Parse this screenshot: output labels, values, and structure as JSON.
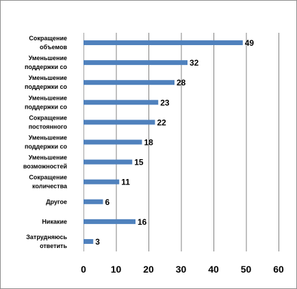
{
  "chart_data": {
    "type": "bar",
    "orientation": "horizontal",
    "title": "",
    "xlabel": "",
    "ylabel": "",
    "xlim": [
      0,
      60
    ],
    "xticks": [
      0,
      10,
      20,
      30,
      40,
      50,
      60
    ],
    "grid": "vertical",
    "legend": "none",
    "bar_color": "#4f81bd",
    "grid_color": "#808080",
    "categories": [
      {
        "lines": [
          "Сокращение",
          "объемов"
        ]
      },
      {
        "lines": [
          "Уменьшение",
          "поддержки со"
        ]
      },
      {
        "lines": [
          "Уменьшение",
          "поддержки со"
        ]
      },
      {
        "lines": [
          "Уменьшение",
          "поддержки со"
        ]
      },
      {
        "lines": [
          "Сокращение",
          "постоянного"
        ]
      },
      {
        "lines": [
          "Уменьшение",
          "поддержки со"
        ]
      },
      {
        "lines": [
          "Уменьшение",
          "возможностей"
        ]
      },
      {
        "lines": [
          "Сокращение",
          "количества"
        ]
      },
      {
        "lines": [
          "Другое"
        ]
      },
      {
        "lines": [
          "Никакие"
        ]
      },
      {
        "lines": [
          "Затрудняюсь",
          "ответить"
        ]
      }
    ],
    "values": [
      49,
      32,
      28,
      23,
      22,
      18,
      15,
      11,
      6,
      16,
      3
    ]
  }
}
